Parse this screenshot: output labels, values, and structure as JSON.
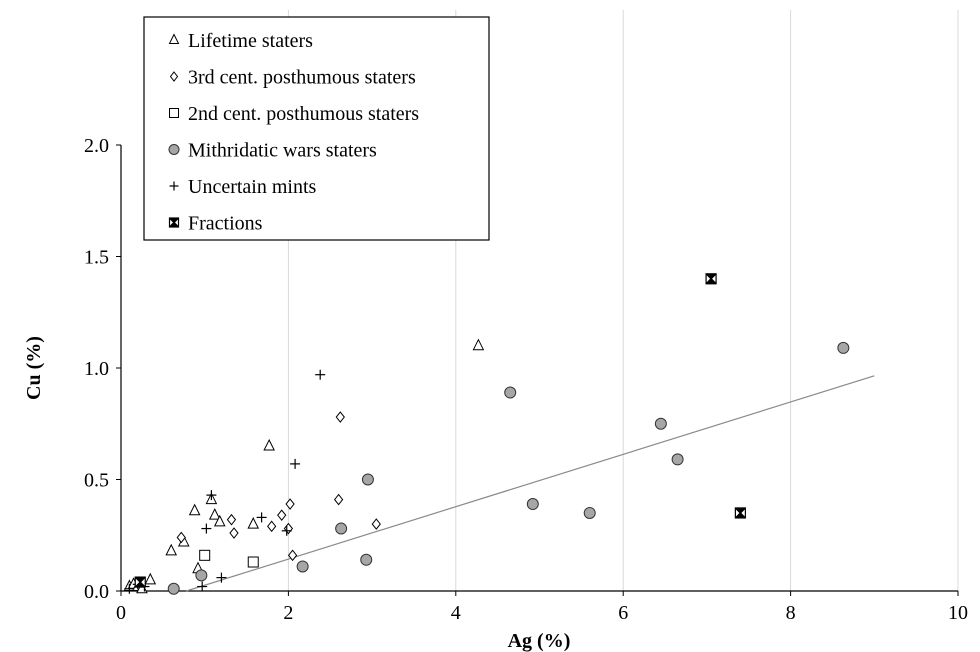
{
  "chart_data": {
    "type": "scatter",
    "title": "",
    "xlabel": "Ag (%)",
    "ylabel": "Cu (%)",
    "xlim": [
      0,
      10
    ],
    "ylim": [
      0,
      2
    ],
    "x_ticks": [
      0,
      2,
      4,
      6,
      8,
      10
    ],
    "y_ticks": [
      0.0,
      0.5,
      1.0,
      1.5,
      2.0
    ],
    "x_tick_labels": [
      "0",
      "2",
      "4",
      "6",
      "8",
      "10"
    ],
    "y_tick_labels": [
      "0.0",
      "0.5",
      "1.0",
      "1.5",
      "2.0"
    ],
    "grid": "vertical",
    "legend_position": "top-left",
    "series": [
      {
        "name": "Lifetime staters",
        "marker": "triangle",
        "points": [
          [
            0.1,
            0.02
          ],
          [
            0.15,
            0.03
          ],
          [
            0.2,
            0.02
          ],
          [
            0.25,
            0.01
          ],
          [
            0.35,
            0.05
          ],
          [
            0.6,
            0.18
          ],
          [
            0.75,
            0.22
          ],
          [
            0.88,
            0.36
          ],
          [
            0.92,
            0.1
          ],
          [
            1.08,
            0.41
          ],
          [
            1.12,
            0.34
          ],
          [
            1.18,
            0.31
          ],
          [
            1.58,
            0.3
          ],
          [
            1.77,
            0.65
          ],
          [
            4.27,
            1.1
          ]
        ]
      },
      {
        "name": "3rd cent. posthumous staters",
        "marker": "diamond",
        "points": [
          [
            0.72,
            0.24
          ],
          [
            1.32,
            0.32
          ],
          [
            1.35,
            0.26
          ],
          [
            1.8,
            0.29
          ],
          [
            1.92,
            0.34
          ],
          [
            2.0,
            0.28
          ],
          [
            2.02,
            0.39
          ],
          [
            2.05,
            0.16
          ],
          [
            2.6,
            0.41
          ],
          [
            2.62,
            0.78
          ],
          [
            3.05,
            0.3
          ]
        ]
      },
      {
        "name": "2nd cent. posthumous staters",
        "marker": "square",
        "points": [
          [
            1.0,
            0.16
          ],
          [
            1.58,
            0.13
          ]
        ]
      },
      {
        "name": "Mithridatic wars staters",
        "marker": "circle",
        "points": [
          [
            0.63,
            0.01
          ],
          [
            0.96,
            0.07
          ],
          [
            2.17,
            0.11
          ],
          [
            2.63,
            0.28
          ],
          [
            2.93,
            0.14
          ],
          [
            2.95,
            0.5
          ],
          [
            4.65,
            0.89
          ],
          [
            4.92,
            0.39
          ],
          [
            5.6,
            0.35
          ],
          [
            6.45,
            0.75
          ],
          [
            6.65,
            0.59
          ],
          [
            8.63,
            1.09
          ]
        ]
      },
      {
        "name": "Uncertain mints",
        "marker": "plus",
        "points": [
          [
            0.1,
            0.01
          ],
          [
            0.2,
            0.03
          ],
          [
            0.28,
            0.02
          ],
          [
            0.97,
            0.02
          ],
          [
            1.02,
            0.28
          ],
          [
            1.08,
            0.43
          ],
          [
            1.2,
            0.06
          ],
          [
            1.68,
            0.33
          ],
          [
            1.98,
            0.27
          ],
          [
            2.08,
            0.57
          ],
          [
            2.38,
            0.97
          ]
        ]
      },
      {
        "name": "Fractions",
        "marker": "crossed-square",
        "points": [
          [
            0.23,
            0.04
          ],
          [
            7.05,
            1.4
          ],
          [
            7.4,
            0.35
          ]
        ]
      }
    ],
    "trendline": {
      "x": [
        0.78,
        9.0
      ],
      "y": [
        0.0,
        0.965
      ]
    }
  }
}
